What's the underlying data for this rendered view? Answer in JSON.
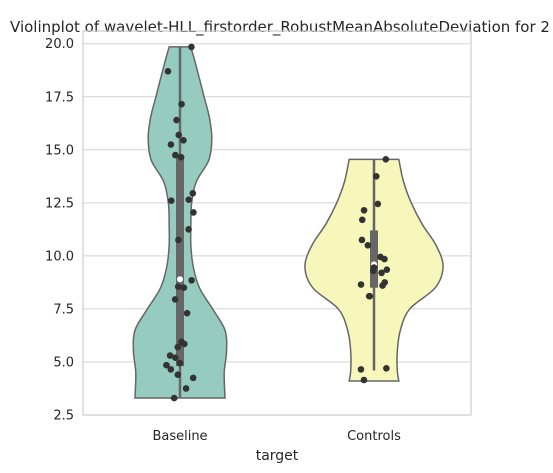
{
  "chart_data": {
    "type": "violin",
    "title": "Violinplot of wavelet-HLL_firstorder_RobustMeanAbsoluteDeviation for 2",
    "xlabel": "target",
    "ylabel": "",
    "ylim": [
      2.5,
      20.6
    ],
    "yticks": [
      "2.5",
      "5.0",
      "7.5",
      "10.0",
      "12.5",
      "15.0",
      "17.5",
      "20.0"
    ],
    "ytick_values": [
      2.5,
      5.0,
      7.5,
      10.0,
      12.5,
      15.0,
      17.5,
      20.0
    ],
    "categories": [
      "Baseline",
      "Controls"
    ],
    "grid": true,
    "colors": {
      "Baseline": "#96cbc0",
      "Controls": "#f7f7bb",
      "edge": "#666666",
      "box": "#666666",
      "points": "#333333",
      "grid": "#d4d4d4"
    },
    "series": [
      {
        "category": "Baseline",
        "min": 3.3,
        "max": 19.85,
        "q1": 4.8,
        "median": 8.9,
        "q3": 14.7,
        "whisker_low": 3.3,
        "whisker_high": 19.85,
        "density": [
          [
            3.3,
            0.58
          ],
          [
            4.5,
            0.57
          ],
          [
            5.5,
            0.6
          ],
          [
            6.5,
            0.58
          ],
          [
            7.5,
            0.42
          ],
          [
            8.5,
            0.25
          ],
          [
            9.5,
            0.17
          ],
          [
            10.5,
            0.14
          ],
          [
            11.5,
            0.14
          ],
          [
            12.5,
            0.15
          ],
          [
            13.5,
            0.21
          ],
          [
            14.5,
            0.37
          ],
          [
            15.5,
            0.41
          ],
          [
            16.5,
            0.38
          ],
          [
            17.5,
            0.31
          ],
          [
            18.5,
            0.24
          ],
          [
            19.2,
            0.19
          ],
          [
            19.85,
            0.14
          ]
        ],
        "points": [
          19.85,
          18.7,
          17.15,
          16.4,
          15.7,
          15.45,
          15.25,
          14.75,
          14.65,
          12.95,
          12.65,
          12.6,
          12.05,
          11.25,
          10.75,
          8.85,
          8.55,
          8.5,
          7.95,
          7.3,
          5.95,
          5.85,
          5.7,
          5.3,
          5.2,
          4.95,
          4.85,
          4.65,
          4.4,
          4.25,
          3.75,
          3.3
        ]
      },
      {
        "category": "Controls",
        "min": 4.1,
        "max": 14.55,
        "q1": 8.5,
        "median": 9.6,
        "q3": 11.2,
        "whisker_low": 4.6,
        "whisker_high": 14.55,
        "density": [
          [
            4.1,
            0.32
          ],
          [
            4.6,
            0.3
          ],
          [
            5.5,
            0.3
          ],
          [
            6.5,
            0.34
          ],
          [
            7.5,
            0.46
          ],
          [
            8.5,
            0.79
          ],
          [
            9.5,
            0.89
          ],
          [
            10.5,
            0.8
          ],
          [
            11.5,
            0.62
          ],
          [
            12.5,
            0.48
          ],
          [
            13.5,
            0.38
          ],
          [
            14.55,
            0.32
          ]
        ],
        "points": [
          14.55,
          13.75,
          12.45,
          12.15,
          11.7,
          10.75,
          10.5,
          9.95,
          9.85,
          9.45,
          9.35,
          9.3,
          9.2,
          8.75,
          8.65,
          8.6,
          8.1,
          8.1,
          4.7,
          4.65,
          4.15
        ]
      }
    ]
  }
}
